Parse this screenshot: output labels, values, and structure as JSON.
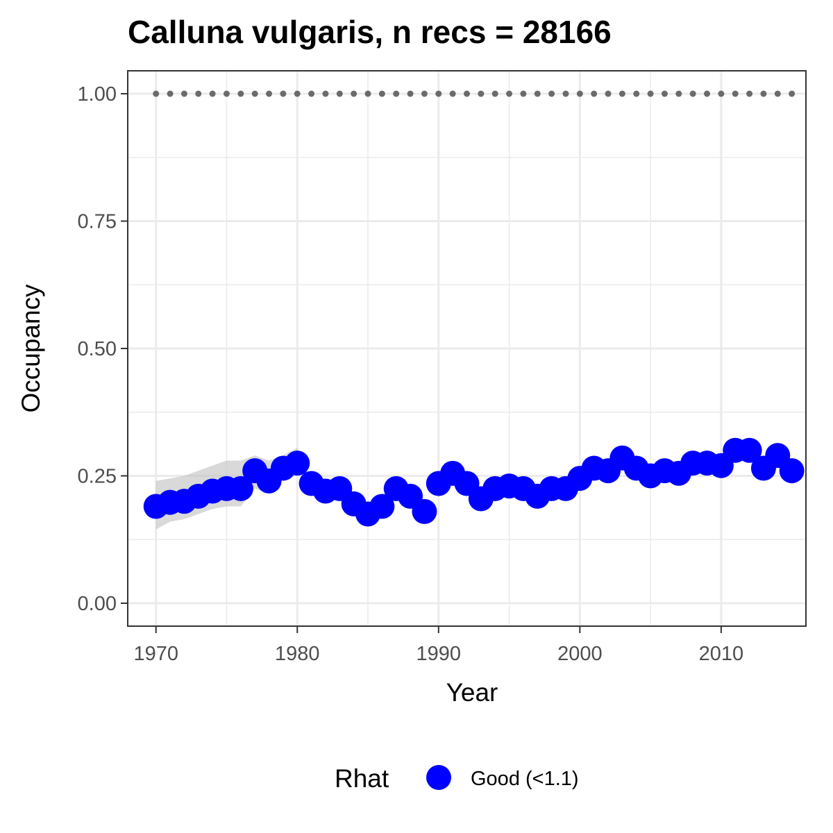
{
  "chart_data": {
    "type": "line",
    "title": "Calluna vulgaris, n recs = 28166",
    "xlabel": "Year",
    "ylabel": "Occupancy",
    "xlim": [
      1968,
      2016
    ],
    "ylim": [
      -0.045,
      1.045
    ],
    "x_ticks": [
      1970,
      1980,
      1990,
      2000,
      2010
    ],
    "x_tick_labels": [
      "1970",
      "1980",
      "1990",
      "2000",
      "2010"
    ],
    "y_ticks": [
      0,
      0.25,
      0.5,
      0.75,
      1.0
    ],
    "y_tick_labels": [
      "0.00",
      "0.25",
      "0.50",
      "0.75",
      "1.00"
    ],
    "grid": true,
    "legend": {
      "position": "bottom",
      "title": "Rhat",
      "entries": [
        {
          "label": "Good (<1.1)",
          "color": "#0000ff"
        }
      ]
    },
    "colors": {
      "points": "#0000ff",
      "ribbon": "#bfbfbf",
      "reference_points": "#6b6b6b",
      "grid": "#ebebeb",
      "panel_border": "#333333"
    },
    "series": [
      {
        "x": [
          1970,
          1971,
          1972,
          1973,
          1974,
          1975,
          1976,
          1977,
          1978,
          1979,
          1980,
          1981,
          1982,
          1983,
          1984,
          1985,
          1986,
          1987,
          1988,
          1989,
          1990,
          1991,
          1992,
          1993,
          1994,
          1995,
          1996,
          1997,
          1998,
          1999,
          2000,
          2001,
          2002,
          2003,
          2004,
          2005,
          2006,
          2007,
          2008,
          2009,
          2010,
          2011,
          2012,
          2013,
          2014,
          2015
        ],
        "values": [
          0.19,
          0.198,
          0.2,
          0.21,
          0.22,
          0.225,
          0.225,
          0.26,
          0.24,
          0.265,
          0.275,
          0.235,
          0.22,
          0.225,
          0.195,
          0.175,
          0.19,
          0.225,
          0.21,
          0.18,
          0.235,
          0.255,
          0.235,
          0.205,
          0.225,
          0.23,
          0.225,
          0.21,
          0.225,
          0.225,
          0.245,
          0.265,
          0.26,
          0.285,
          0.265,
          0.25,
          0.26,
          0.255,
          0.275,
          0.275,
          0.27,
          0.3,
          0.3,
          0.265,
          0.29,
          0.26
        ]
      },
      {
        "x": [
          1970,
          1971,
          1972,
          1973,
          1974,
          1975,
          1976,
          1977,
          1978,
          1979,
          1980,
          1981,
          1982,
          1983,
          1984,
          1985,
          1986,
          1987,
          1988,
          1989,
          1990,
          1991,
          1992,
          1993,
          1994,
          1995,
          1996,
          1997,
          1998,
          1999,
          2000,
          2001,
          2002,
          2003,
          2004,
          2005,
          2006,
          2007,
          2008,
          2009,
          2010,
          2011,
          2012,
          2013,
          2014,
          2015
        ],
        "values": [
          1,
          1,
          1,
          1,
          1,
          1,
          1,
          1,
          1,
          1,
          1,
          1,
          1,
          1,
          1,
          1,
          1,
          1,
          1,
          1,
          1,
          1,
          1,
          1,
          1,
          1,
          1,
          1,
          1,
          1,
          1,
          1,
          1,
          1,
          1,
          1,
          1,
          1,
          1,
          1,
          1,
          1,
          1,
          1,
          1,
          1
        ]
      }
    ],
    "ribbon": {
      "x": [
        1970,
        1971,
        1972,
        1973,
        1974,
        1975,
        1976,
        1977,
        1978,
        1979,
        1980,
        1981
      ],
      "lower": [
        0.145,
        0.16,
        0.165,
        0.175,
        0.185,
        0.19,
        0.19,
        0.225,
        0.215,
        0.245,
        0.26,
        0.235
      ],
      "upper": [
        0.24,
        0.245,
        0.25,
        0.26,
        0.27,
        0.28,
        0.28,
        0.29,
        0.28,
        0.29,
        0.305,
        0.235
      ]
    }
  }
}
